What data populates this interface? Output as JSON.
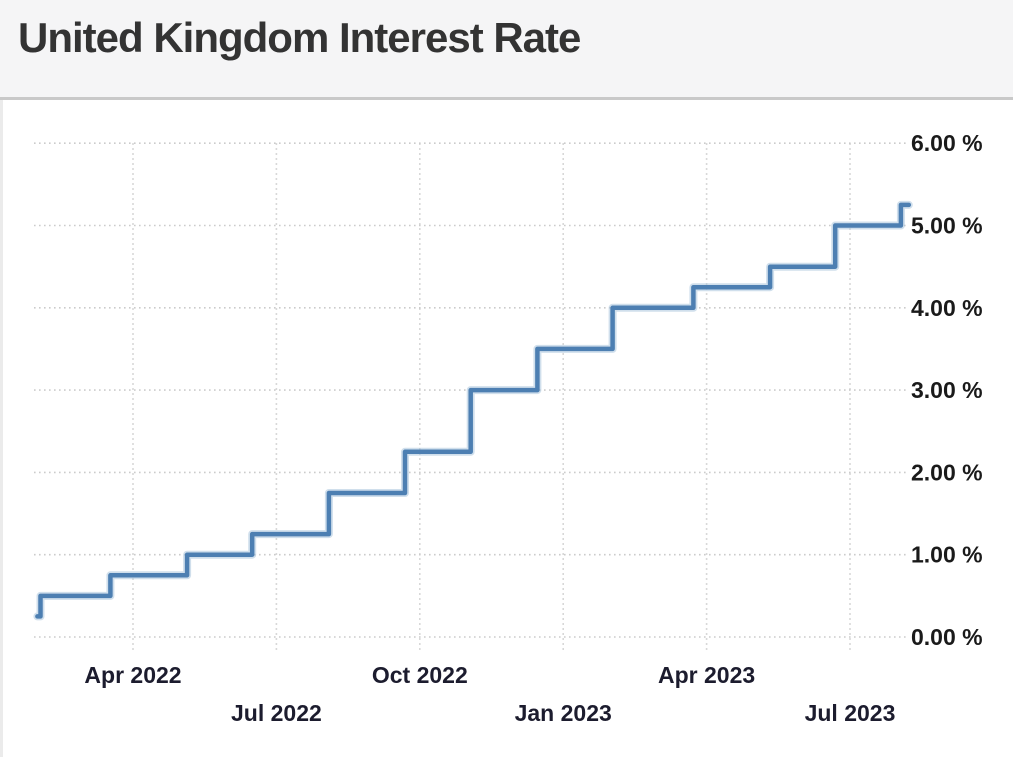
{
  "page": {
    "title": "United Kingdom Interest Rate"
  },
  "chart_data": {
    "type": "line",
    "step": true,
    "title": "United Kingdom Interest Rate",
    "xlabel": "",
    "ylabel": "",
    "unit": "%",
    "ylim": [
      0,
      6
    ],
    "x_range": [
      "2022-02-01",
      "2023-08-08"
    ],
    "grid": "dotted",
    "legend": "none",
    "colors": {
      "line": "#4d7fb2",
      "line_halo": "#a9c4dd",
      "grid": "#cbcbcb",
      "axis_text": "#1a1a1a",
      "title_text": "#333333",
      "header_bg": "#f5f5f6",
      "card_bg": "#ffffff",
      "divider": "#c9c9c9",
      "page_bg": "#ebebeb"
    },
    "series": [
      {
        "name": "Interest Rate",
        "points": [
          {
            "date": "2022-02-01",
            "value": 0.25
          },
          {
            "date": "2022-02-03",
            "value": 0.5
          },
          {
            "date": "2022-03-17",
            "value": 0.75
          },
          {
            "date": "2022-05-05",
            "value": 1.0
          },
          {
            "date": "2022-06-16",
            "value": 1.25
          },
          {
            "date": "2022-08-04",
            "value": 1.75
          },
          {
            "date": "2022-09-22",
            "value": 2.25
          },
          {
            "date": "2022-11-03",
            "value": 3.0
          },
          {
            "date": "2022-12-15",
            "value": 3.5
          },
          {
            "date": "2023-02-02",
            "value": 4.0
          },
          {
            "date": "2023-03-23",
            "value": 4.25
          },
          {
            "date": "2023-05-11",
            "value": 4.5
          },
          {
            "date": "2023-06-22",
            "value": 5.0
          },
          {
            "date": "2023-08-03",
            "value": 5.25
          }
        ],
        "end_date": "2023-08-08"
      }
    ],
    "x_ticks": [
      {
        "label": "Apr 2022",
        "date": "2022-04-01",
        "row": 0
      },
      {
        "label": "Jul 2022",
        "date": "2022-07-01",
        "row": 1
      },
      {
        "label": "Oct 2022",
        "date": "2022-10-01",
        "row": 0
      },
      {
        "label": "Jan 2023",
        "date": "2023-01-01",
        "row": 1
      },
      {
        "label": "Apr 2023",
        "date": "2023-04-01",
        "row": 0
      },
      {
        "label": "Jul 2023",
        "date": "2023-07-01",
        "row": 1
      }
    ],
    "y_ticks": [
      {
        "label": "0.00 %",
        "value": 0
      },
      {
        "label": "1.00 %",
        "value": 1
      },
      {
        "label": "2.00 %",
        "value": 2
      },
      {
        "label": "3.00 %",
        "value": 3
      },
      {
        "label": "4.00 %",
        "value": 4
      },
      {
        "label": "5.00 %",
        "value": 5
      },
      {
        "label": "6.00 %",
        "value": 6
      }
    ]
  }
}
